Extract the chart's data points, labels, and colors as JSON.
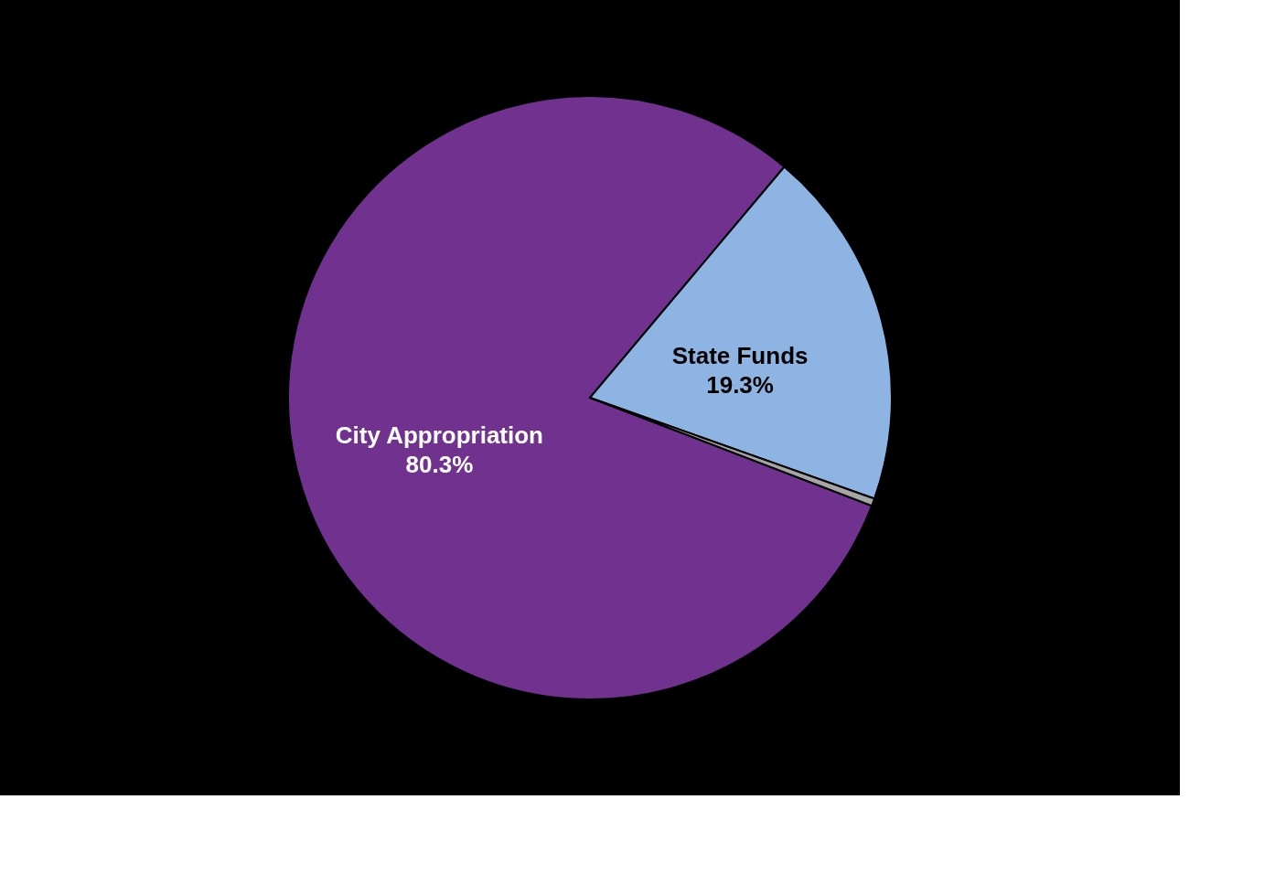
{
  "chart_data": {
    "type": "pie",
    "categories": [
      "City Appropriation",
      "State Funds",
      null
    ],
    "values": [
      80.3,
      19.3,
      0.4
    ],
    "colors": [
      "#70328e",
      "#8db4e2",
      "#a6a6a6"
    ],
    "value_labels": [
      "80.3%",
      "19.3%",
      null
    ]
  }
}
